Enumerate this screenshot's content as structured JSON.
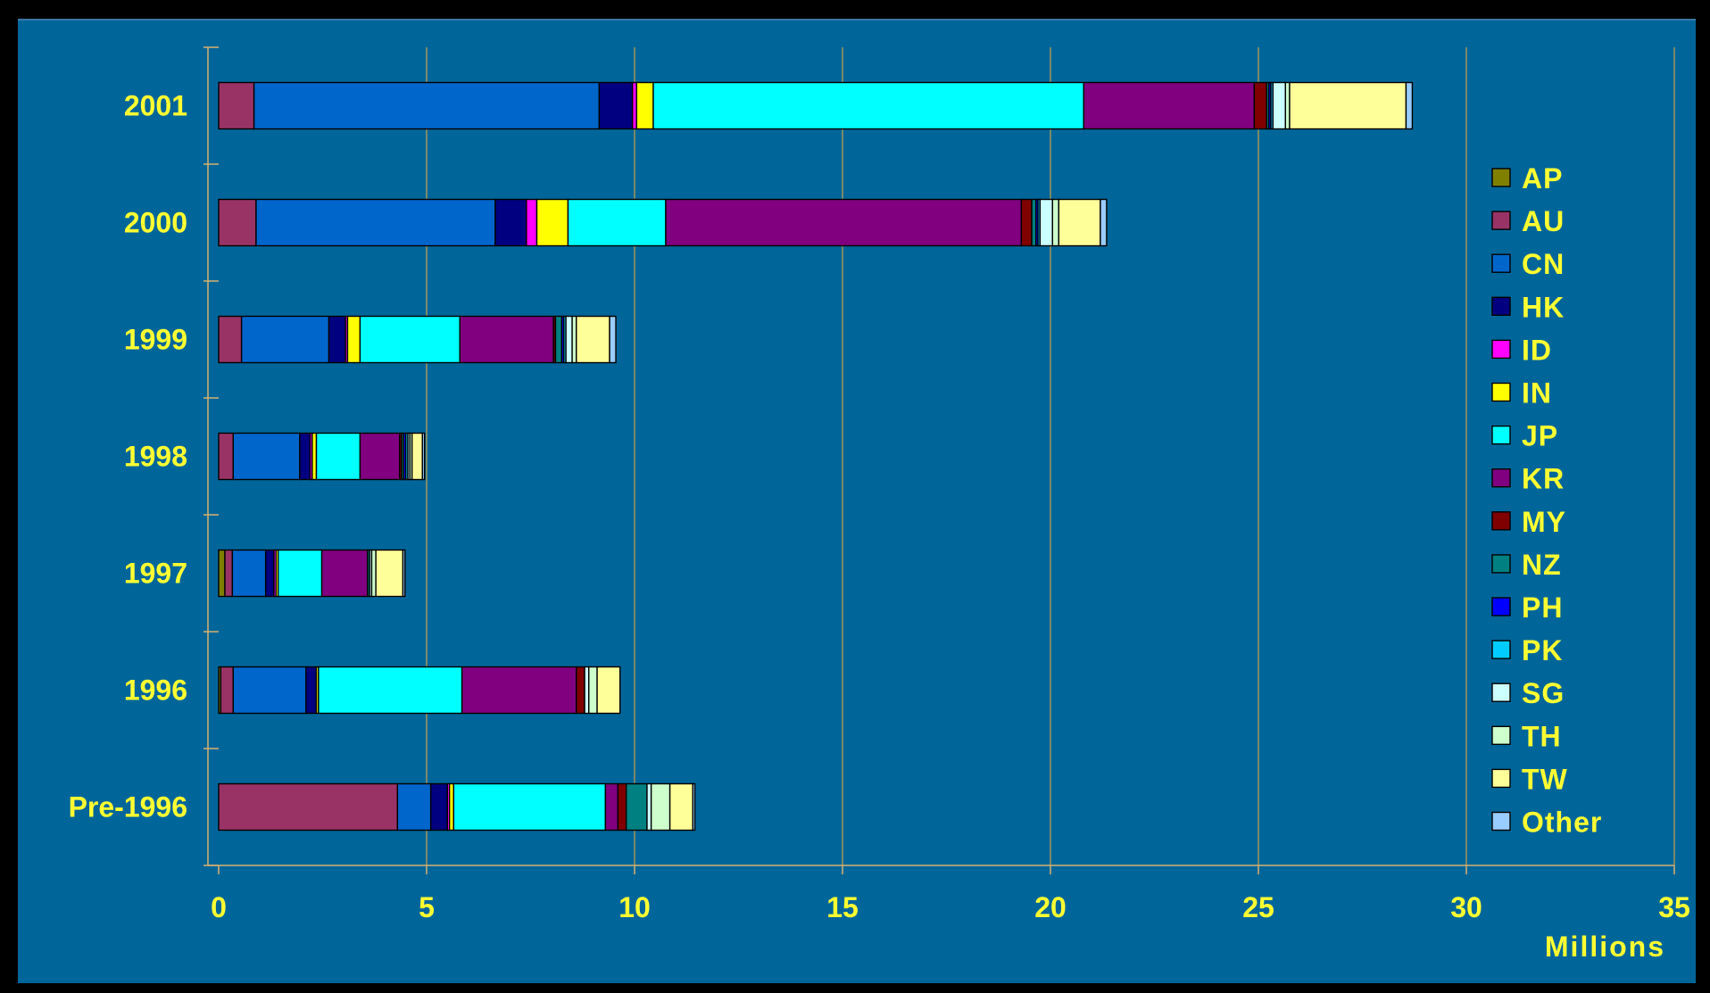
{
  "chart_data": {
    "type": "bar",
    "orientation": "horizontal",
    "stacked": true,
    "categories": [
      "2001",
      "2000",
      "1999",
      "1998",
      "1997",
      "1996",
      "Pre-1996"
    ],
    "xlabel": "Millions",
    "xlim": [
      0,
      35
    ],
    "xticks": [
      0,
      5,
      10,
      15,
      20,
      25,
      30,
      35
    ],
    "grid": true,
    "legend_position": "right",
    "series": [
      {
        "name": "AP",
        "color": "#808000",
        "values": [
          0.0,
          0.0,
          0.0,
          0.0,
          0.15,
          0.05,
          0.0
        ]
      },
      {
        "name": "AU",
        "color": "#993366",
        "values": [
          0.85,
          0.9,
          0.55,
          0.35,
          0.18,
          0.3,
          4.3
        ]
      },
      {
        "name": "CN",
        "color": "#0066cc",
        "values": [
          8.3,
          5.75,
          2.1,
          1.6,
          0.8,
          1.75,
          0.8
        ]
      },
      {
        "name": "HK",
        "color": "#000080",
        "values": [
          0.8,
          0.75,
          0.4,
          0.25,
          0.2,
          0.25,
          0.4
        ]
      },
      {
        "name": "ID",
        "color": "#ff00ff",
        "values": [
          0.1,
          0.25,
          0.05,
          0.05,
          0.05,
          0.0,
          0.05
        ]
      },
      {
        "name": "IN",
        "color": "#ffff00",
        "values": [
          0.4,
          0.75,
          0.3,
          0.1,
          0.05,
          0.05,
          0.1
        ]
      },
      {
        "name": "JP",
        "color": "#00ffff",
        "values": [
          10.35,
          2.35,
          2.4,
          1.05,
          1.05,
          3.45,
          3.65
        ]
      },
      {
        "name": "KR",
        "color": "#800080",
        "values": [
          4.1,
          8.55,
          2.25,
          0.95,
          1.1,
          2.75,
          0.3
        ]
      },
      {
        "name": "MY",
        "color": "#800000",
        "values": [
          0.3,
          0.25,
          0.05,
          0.05,
          0.0,
          0.2,
          0.2
        ]
      },
      {
        "name": "NZ",
        "color": "#008080",
        "values": [
          0.05,
          0.1,
          0.15,
          0.05,
          0.05,
          0.0,
          0.5
        ]
      },
      {
        "name": "PH",
        "color": "#0000ff",
        "values": [
          0.05,
          0.05,
          0.05,
          0.05,
          0.0,
          0.0,
          0.0
        ]
      },
      {
        "name": "PK",
        "color": "#00ccff",
        "values": [
          0.05,
          0.05,
          0.05,
          0.05,
          0.0,
          0.0,
          0.0
        ]
      },
      {
        "name": "SG",
        "color": "#ccffff",
        "values": [
          0.3,
          0.3,
          0.15,
          0.05,
          0.05,
          0.1,
          0.1
        ]
      },
      {
        "name": "TH",
        "color": "#ccffcc",
        "values": [
          0.1,
          0.15,
          0.1,
          0.05,
          0.1,
          0.2,
          0.45
        ]
      },
      {
        "name": "TW",
        "color": "#ffff99",
        "values": [
          2.8,
          1.0,
          0.8,
          0.25,
          0.65,
          0.55,
          0.55
        ]
      },
      {
        "name": "Other",
        "color": "#99ccff",
        "values": [
          0.15,
          0.15,
          0.15,
          0.05,
          0.05,
          0.0,
          0.05
        ]
      }
    ]
  }
}
